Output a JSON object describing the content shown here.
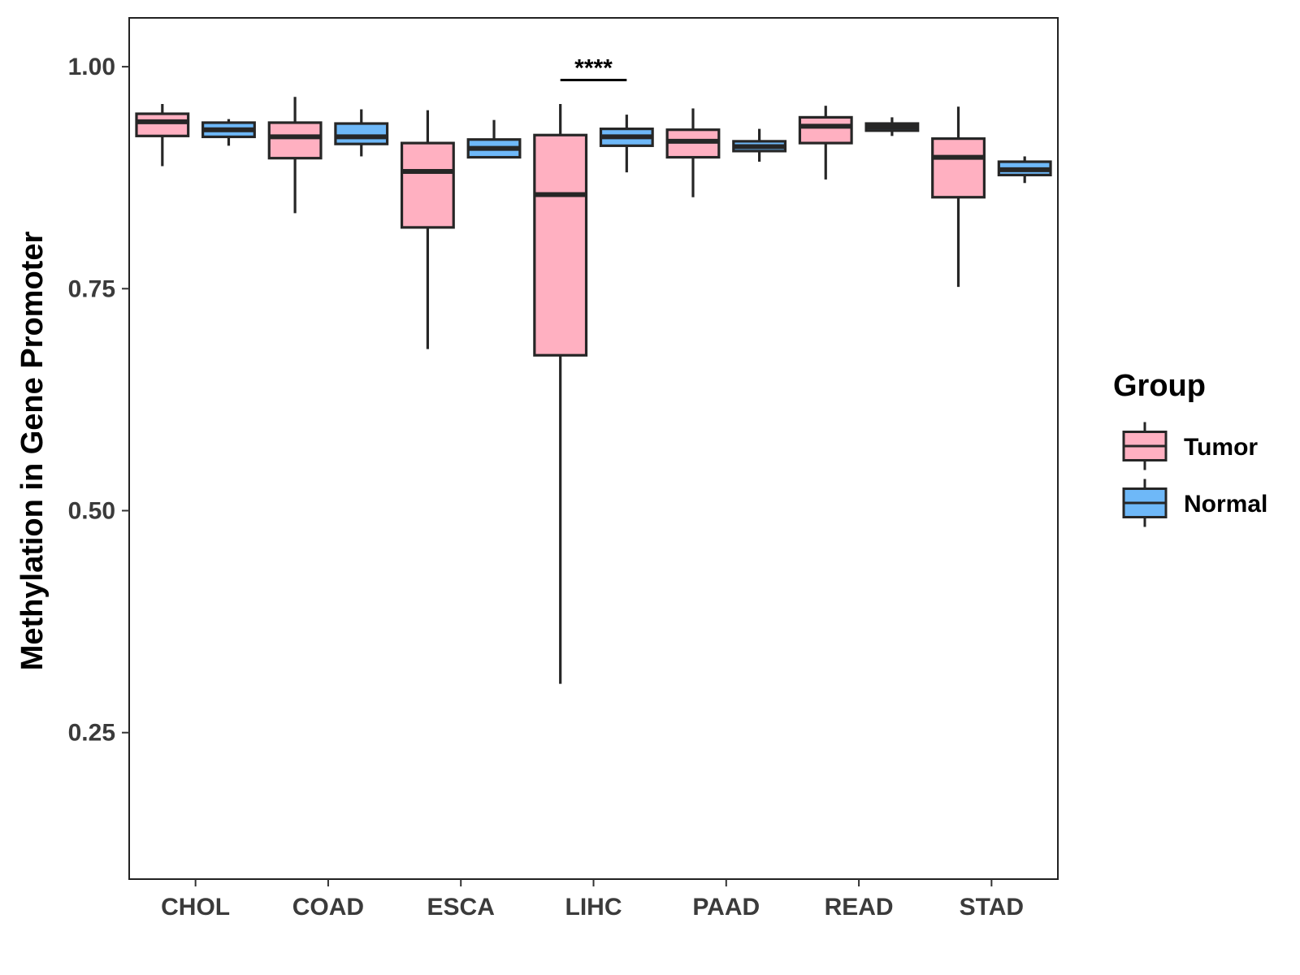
{
  "chart_data": {
    "type": "boxplot",
    "ylabel": "Methylation in Gene Promoter",
    "xlabel": "",
    "ylim": [
      0.085,
      1.055
    ],
    "yticks": [
      0.25,
      0.5,
      0.75,
      1.0
    ],
    "ytick_labels": [
      "0.25",
      "0.50",
      "0.75",
      "1.00"
    ],
    "categories": [
      "CHOL",
      "COAD",
      "ESCA",
      "LIHC",
      "PAAD",
      "READ",
      "STAD"
    ],
    "legend": {
      "title": "Group",
      "position": "right",
      "items": [
        {
          "name": "Tumor",
          "color": "#FFB0C1"
        },
        {
          "name": "Normal",
          "color": "#6EB8F8"
        }
      ]
    },
    "box_outline_color": "#262626",
    "series": [
      {
        "name": "Tumor",
        "color": "#FFB0C1",
        "boxes": [
          {
            "category": "CHOL",
            "whisker_low": 0.888,
            "q1": 0.922,
            "median": 0.938,
            "q3": 0.947,
            "whisker_high": 0.958
          },
          {
            "category": "COAD",
            "whisker_low": 0.835,
            "q1": 0.897,
            "median": 0.921,
            "q3": 0.937,
            "whisker_high": 0.966
          },
          {
            "category": "ESCA",
            "whisker_low": 0.682,
            "q1": 0.819,
            "median": 0.882,
            "q3": 0.914,
            "whisker_high": 0.951
          },
          {
            "category": "LIHC",
            "whisker_low": 0.305,
            "q1": 0.675,
            "median": 0.856,
            "q3": 0.923,
            "whisker_high": 0.958
          },
          {
            "category": "PAAD",
            "whisker_low": 0.853,
            "q1": 0.898,
            "median": 0.916,
            "q3": 0.929,
            "whisker_high": 0.953
          },
          {
            "category": "READ",
            "whisker_low": 0.873,
            "q1": 0.914,
            "median": 0.933,
            "q3": 0.943,
            "whisker_high": 0.956
          },
          {
            "category": "STAD",
            "whisker_low": 0.752,
            "q1": 0.853,
            "median": 0.898,
            "q3": 0.919,
            "whisker_high": 0.955
          }
        ]
      },
      {
        "name": "Normal",
        "color": "#6EB8F8",
        "boxes": [
          {
            "category": "CHOL",
            "whisker_low": 0.911,
            "q1": 0.921,
            "median": 0.929,
            "q3": 0.937,
            "whisker_high": 0.941
          },
          {
            "category": "COAD",
            "whisker_low": 0.899,
            "q1": 0.913,
            "median": 0.921,
            "q3": 0.936,
            "whisker_high": 0.952
          },
          {
            "category": "ESCA",
            "whisker_low": 0.898,
            "q1": 0.898,
            "median": 0.908,
            "q3": 0.918,
            "whisker_high": 0.94
          },
          {
            "category": "LIHC",
            "whisker_low": 0.881,
            "q1": 0.911,
            "median": 0.921,
            "q3": 0.93,
            "whisker_high": 0.946
          },
          {
            "category": "PAAD",
            "whisker_low": 0.893,
            "q1": 0.905,
            "median": 0.91,
            "q3": 0.916,
            "whisker_high": 0.93
          },
          {
            "category": "READ",
            "whisker_low": 0.922,
            "q1": 0.928,
            "median": 0.932,
            "q3": 0.936,
            "whisker_high": 0.943
          },
          {
            "category": "STAD",
            "whisker_low": 0.869,
            "q1": 0.878,
            "median": 0.884,
            "q3": 0.893,
            "whisker_high": 0.899
          }
        ]
      }
    ],
    "annotations": [
      {
        "category": "LIHC",
        "label": "****",
        "y": 0.985
      }
    ]
  }
}
